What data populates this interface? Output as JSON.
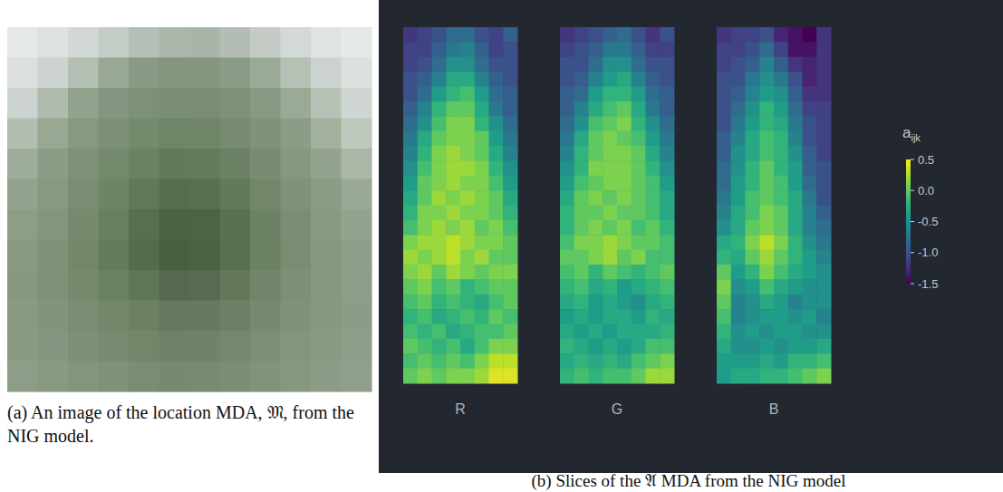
{
  "chart_data": [
    {
      "type": "image",
      "caption": "(a) An image of the location MDA, 𝔐, from the NIG model.",
      "pixels": [
        [
          "#e4e8e8",
          "#dde2e1",
          "#d2d8d5",
          "#c4ccc6",
          "#b4bfb5",
          "#aab6aa",
          "#aab5aa",
          "#b3bdb3",
          "#c3cbc4",
          "#d3d9d6",
          "#dfe3e2",
          "#e5e9e9"
        ],
        [
          "#dce1e0",
          "#cdd4cf",
          "#b3bfb2",
          "#98a894",
          "#899b84",
          "#84977e",
          "#84977e",
          "#8b9c86",
          "#9cab98",
          "#b6c1b6",
          "#cdd4cf",
          "#dce1e0"
        ],
        [
          "#cdd4cf",
          "#afbbad",
          "#93a48e",
          "#849680",
          "#7d9078",
          "#7a8e74",
          "#7a8d73",
          "#7f9279",
          "#889a82",
          "#9aaa96",
          "#b7c2b6",
          "#cfd6d2"
        ],
        [
          "#b3beb1",
          "#98a893",
          "#87997f",
          "#7d9076",
          "#738a6c",
          "#6e8568",
          "#6f8568",
          "#768b6f",
          "#80937a",
          "#8c9d86",
          "#a2b09d",
          "#bec8bd"
        ],
        [
          "#9fae9a",
          "#8c9d86",
          "#7f9278",
          "#748a6d",
          "#6a8262",
          "#627a5a",
          "#637a5b",
          "#6c8264",
          "#798c71",
          "#869880",
          "#93a38d",
          "#aab7a6"
        ],
        [
          "#93a38d",
          "#87997f",
          "#7a8d72",
          "#6e8466",
          "#617858",
          "#566e4d",
          "#57704e",
          "#637a5a",
          "#72876a",
          "#80937a",
          "#8c9d86",
          "#9aa996"
        ],
        [
          "#8d9e87",
          "#83957c",
          "#768a6e",
          "#68805f",
          "#576f4e",
          "#4b6343",
          "#4c6444",
          "#5a7151",
          "#6c8264",
          "#7b8e74",
          "#889a82",
          "#93a38e"
        ],
        [
          "#889a82",
          "#7f9278",
          "#73886b",
          "#647b5b",
          "#546c4b",
          "#485f40",
          "#4a6142",
          "#586f4f",
          "#6a8162",
          "#7a8d73",
          "#869880",
          "#8e9e88"
        ],
        [
          "#879880",
          "#7f9278",
          "#768a6e",
          "#6b8163",
          "#5f7657",
          "#56694e",
          "#586b50",
          "#637759",
          "#71856a",
          "#7d9076",
          "#879880",
          "#8d9d87"
        ],
        [
          "#899a82",
          "#829479",
          "#7a8d72",
          "#73886b",
          "#6c8164",
          "#66785e",
          "#677a5f",
          "#6e8166",
          "#778a6f",
          "#7f9278",
          "#879880",
          "#8c9c86"
        ],
        [
          "#8a9b84",
          "#849680",
          "#7d9076",
          "#788b70",
          "#72866a",
          "#6f8268",
          "#708368",
          "#75886d",
          "#7c8e74",
          "#83957b",
          "#899a82",
          "#8e9e88"
        ],
        [
          "#8d9d87",
          "#889a82",
          "#83957c",
          "#7f9278",
          "#7a8d73",
          "#778a70",
          "#788b71",
          "#7b8e74",
          "#81937a",
          "#879880",
          "#8c9c86",
          "#909f8a"
        ]
      ]
    },
    {
      "type": "heatmap",
      "caption": "(b) Slices of the 𝔄 MDA from the NIG model",
      "tick_labels": false,
      "colorbar": {
        "label": "a",
        "label_subscript": "ijk",
        "range": [
          -1.5,
          0.5
        ],
        "ticks": [
          0.5,
          {
            "value": 0,
            "label": "0.0"
          },
          -0.5,
          {
            "value": -1,
            "label": "-1.0"
          },
          -1.5
        ]
      },
      "panels": [
        {
          "name": "R",
          "cells": [
            [
              -1.2,
              -1.1,
              -1.0,
              -0.8,
              -0.8,
              -1.0,
              -1.1,
              -0.9
            ],
            [
              -1.1,
              -1.1,
              -0.9,
              -0.7,
              -0.6,
              -0.9,
              -1.1,
              -1.0
            ],
            [
              -1.1,
              -1.0,
              -0.8,
              -0.5,
              -0.5,
              -0.8,
              -1.0,
              -1.0
            ],
            [
              -1.0,
              -0.9,
              -0.6,
              -0.3,
              -0.3,
              -0.6,
              -0.9,
              -1.0
            ],
            [
              -1.0,
              -0.8,
              -0.4,
              -0.2,
              -0.1,
              -0.4,
              -0.8,
              -0.9
            ],
            [
              -0.9,
              -0.6,
              -0.2,
              0.0,
              0.0,
              -0.3,
              -0.7,
              -0.9
            ],
            [
              -0.8,
              -0.5,
              -0.1,
              0.1,
              0.1,
              -0.2,
              -0.5,
              -0.8
            ],
            [
              -0.7,
              -0.3,
              0.0,
              0.1,
              0.1,
              0.0,
              -0.4,
              -0.7
            ],
            [
              -0.6,
              -0.2,
              0.1,
              0.2,
              0.1,
              0.0,
              -0.3,
              -0.6
            ],
            [
              -0.5,
              -0.1,
              0.1,
              0.2,
              0.2,
              0.1,
              -0.2,
              -0.5
            ],
            [
              -0.4,
              0.0,
              0.1,
              0.2,
              0.1,
              0.1,
              -0.1,
              -0.4
            ],
            [
              -0.3,
              0.0,
              0.2,
              0.1,
              0.2,
              0.1,
              0.0,
              -0.3
            ],
            [
              -0.2,
              0.1,
              0.1,
              0.2,
              0.1,
              0.1,
              0.0,
              -0.2
            ],
            [
              -0.1,
              0.1,
              0.2,
              0.1,
              0.2,
              0.0,
              0.1,
              -0.1
            ],
            [
              0.1,
              0.2,
              0.2,
              0.3,
              0.2,
              0.1,
              0.1,
              0.0
            ],
            [
              0.2,
              0.1,
              0.2,
              0.3,
              0.1,
              0.2,
              0.0,
              0.0
            ],
            [
              0.1,
              0.2,
              0.0,
              0.2,
              0.1,
              0.0,
              0.1,
              0.1
            ],
            [
              0.0,
              0.1,
              -0.1,
              0.0,
              -0.2,
              -0.1,
              0.0,
              0.0
            ],
            [
              -0.1,
              0.0,
              -0.2,
              -0.1,
              -0.2,
              -0.3,
              -0.1,
              0.0
            ],
            [
              -0.2,
              -0.1,
              -0.3,
              -0.2,
              -0.1,
              -0.2,
              0.0,
              -0.1
            ],
            [
              -0.1,
              -0.2,
              -0.1,
              -0.3,
              -0.2,
              -0.1,
              -0.1,
              0.0
            ],
            [
              0.0,
              -0.1,
              -0.2,
              -0.1,
              -0.3,
              -0.1,
              0.1,
              0.1
            ],
            [
              -0.1,
              0.0,
              -0.1,
              0.0,
              -0.1,
              0.1,
              0.3,
              0.3
            ],
            [
              0.0,
              0.1,
              0.0,
              0.1,
              0.1,
              0.2,
              0.4,
              0.4
            ]
          ]
        },
        {
          "name": "G",
          "cells": [
            [
              -1.2,
              -1.1,
              -1.0,
              -0.9,
              -0.8,
              -1.0,
              -1.2,
              -1.0
            ],
            [
              -1.1,
              -1.0,
              -0.9,
              -0.7,
              -0.7,
              -0.9,
              -1.1,
              -1.1
            ],
            [
              -1.0,
              -1.0,
              -0.8,
              -0.5,
              -0.5,
              -0.8,
              -1.0,
              -1.0
            ],
            [
              -1.0,
              -0.9,
              -0.6,
              -0.4,
              -0.3,
              -0.6,
              -0.9,
              -1.0
            ],
            [
              -0.9,
              -0.8,
              -0.4,
              -0.2,
              -0.2,
              -0.4,
              -0.8,
              -0.9
            ],
            [
              -0.9,
              -0.6,
              -0.3,
              -0.1,
              0.0,
              -0.3,
              -0.7,
              -0.9
            ],
            [
              -0.8,
              -0.5,
              -0.1,
              0.0,
              0.1,
              -0.2,
              -0.5,
              -0.8
            ],
            [
              -0.7,
              -0.3,
              0.0,
              0.1,
              0.0,
              -0.1,
              -0.4,
              -0.7
            ],
            [
              -0.6,
              -0.2,
              0.0,
              0.1,
              0.1,
              0.0,
              -0.3,
              -0.6
            ],
            [
              -0.5,
              -0.2,
              0.1,
              0.1,
              0.1,
              0.0,
              -0.2,
              -0.5
            ],
            [
              -0.4,
              -0.1,
              0.0,
              0.1,
              0.1,
              0.0,
              -0.1,
              -0.4
            ],
            [
              -0.3,
              0.0,
              0.1,
              0.0,
              0.1,
              0.0,
              -0.1,
              -0.3
            ],
            [
              -0.2,
              0.0,
              0.0,
              0.1,
              0.0,
              0.0,
              -0.1,
              -0.3
            ],
            [
              -0.2,
              0.0,
              0.1,
              0.0,
              0.1,
              -0.1,
              0.0,
              -0.2
            ],
            [
              -0.1,
              0.1,
              0.1,
              0.2,
              0.1,
              0.0,
              0.0,
              -0.1
            ],
            [
              0.0,
              0.0,
              0.1,
              0.2,
              0.0,
              0.1,
              -0.1,
              -0.1
            ],
            [
              -0.1,
              0.0,
              -0.2,
              0.0,
              -0.1,
              -0.2,
              -0.1,
              0.0
            ],
            [
              -0.2,
              -0.1,
              -0.3,
              -0.2,
              -0.4,
              -0.3,
              -0.2,
              -0.1
            ],
            [
              -0.3,
              -0.2,
              -0.4,
              -0.3,
              -0.4,
              -0.5,
              -0.3,
              -0.2
            ],
            [
              -0.4,
              -0.3,
              -0.4,
              -0.3,
              -0.3,
              -0.4,
              -0.2,
              -0.3
            ],
            [
              -0.3,
              -0.4,
              -0.3,
              -0.4,
              -0.3,
              -0.3,
              -0.3,
              -0.2
            ],
            [
              -0.2,
              -0.3,
              -0.4,
              -0.3,
              -0.4,
              -0.3,
              -0.1,
              -0.1
            ],
            [
              -0.3,
              -0.2,
              -0.3,
              -0.2,
              -0.3,
              -0.1,
              0.0,
              0.1
            ],
            [
              -0.2,
              -0.1,
              -0.2,
              -0.1,
              -0.1,
              0.0,
              0.2,
              0.2
            ]
          ]
        },
        {
          "name": "B",
          "cells": [
            [
              -1.2,
              -1.1,
              -1.1,
              -1.0,
              -1.3,
              -1.4,
              -1.5,
              -1.2
            ],
            [
              -1.1,
              -1.1,
              -1.0,
              -0.8,
              -1.1,
              -1.4,
              -1.4,
              -1.2
            ],
            [
              -1.1,
              -1.0,
              -0.9,
              -0.6,
              -0.9,
              -1.2,
              -1.3,
              -1.2
            ],
            [
              -1.0,
              -1.0,
              -0.7,
              -0.5,
              -0.7,
              -1.0,
              -1.3,
              -1.2
            ],
            [
              -1.0,
              -0.9,
              -0.6,
              -0.4,
              -0.5,
              -0.9,
              -1.2,
              -1.2
            ],
            [
              -1.0,
              -0.8,
              -0.5,
              -0.2,
              -0.4,
              -0.8,
              -1.1,
              -1.1
            ],
            [
              -1.0,
              -0.7,
              -0.4,
              -0.2,
              -0.3,
              -0.7,
              -1.0,
              -1.1
            ],
            [
              -0.9,
              -0.6,
              -0.3,
              -0.1,
              -0.2,
              -0.6,
              -1.0,
              -1.1
            ],
            [
              -0.9,
              -0.5,
              -0.3,
              -0.1,
              -0.2,
              -0.5,
              -0.9,
              -1.1
            ],
            [
              -0.8,
              -0.5,
              -0.2,
              0.0,
              -0.2,
              -0.4,
              -0.9,
              -1.0
            ],
            [
              -0.8,
              -0.4,
              -0.2,
              0.0,
              -0.1,
              -0.4,
              -0.8,
              -1.0
            ],
            [
              -0.7,
              -0.4,
              -0.1,
              0.0,
              -0.1,
              -0.3,
              -0.7,
              -1.0
            ],
            [
              -0.6,
              -0.3,
              -0.1,
              0.1,
              0.0,
              -0.3,
              -0.6,
              -0.9
            ],
            [
              -0.5,
              -0.3,
              0.0,
              0.1,
              0.0,
              -0.3,
              -0.6,
              -0.8
            ],
            [
              -0.3,
              -0.2,
              0.1,
              0.3,
              0.1,
              -0.2,
              -0.5,
              -0.7
            ],
            [
              -0.2,
              -0.3,
              0.0,
              0.2,
              0.0,
              -0.2,
              -0.4,
              -0.6
            ],
            [
              0.0,
              -0.4,
              -0.2,
              0.1,
              -0.1,
              -0.3,
              -0.4,
              -0.5
            ],
            [
              0.1,
              -0.5,
              -0.4,
              -0.1,
              -0.3,
              -0.4,
              -0.5,
              -0.5
            ],
            [
              0.0,
              -0.6,
              -0.5,
              -0.3,
              -0.4,
              -0.6,
              -0.5,
              -0.5
            ],
            [
              -0.1,
              -0.6,
              -0.5,
              -0.4,
              -0.4,
              -0.5,
              -0.4,
              -0.6
            ],
            [
              -0.2,
              -0.5,
              -0.4,
              -0.5,
              -0.4,
              -0.4,
              -0.5,
              -0.5
            ],
            [
              -0.3,
              -0.5,
              -0.5,
              -0.4,
              -0.5,
              -0.4,
              -0.4,
              -0.3
            ],
            [
              -0.4,
              -0.4,
              -0.4,
              -0.3,
              -0.4,
              -0.2,
              -0.2,
              -0.1
            ],
            [
              -0.4,
              -0.3,
              -0.3,
              -0.2,
              -0.2,
              -0.1,
              0.0,
              0.1
            ]
          ]
        }
      ]
    }
  ]
}
